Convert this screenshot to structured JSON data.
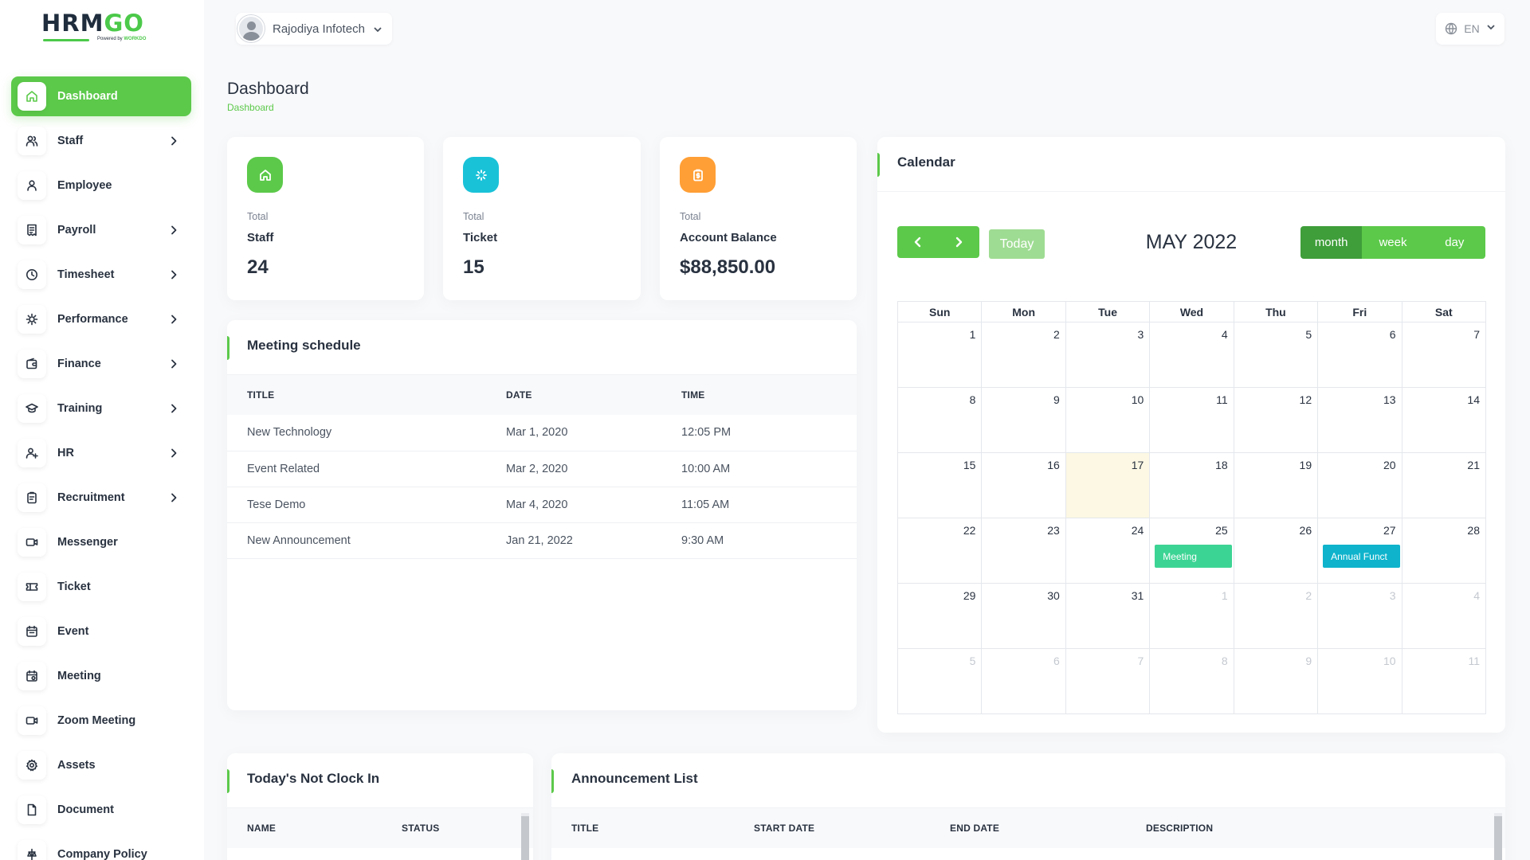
{
  "brand": {
    "logo_main": "HRM",
    "logo_accent": "GO",
    "powered_prefix": "Powered by ",
    "powered_name": "WORKDO"
  },
  "sidebar": {
    "items": [
      {
        "label": "Dashboard",
        "icon": "home-icon",
        "active": true,
        "has_children": false
      },
      {
        "label": "Staff",
        "icon": "users-icon",
        "has_children": true
      },
      {
        "label": "Employee",
        "icon": "user-icon",
        "has_children": false
      },
      {
        "label": "Payroll",
        "icon": "receipt-icon",
        "has_children": true
      },
      {
        "label": "Timesheet",
        "icon": "clock-icon",
        "has_children": true
      },
      {
        "label": "Performance",
        "icon": "target-icon",
        "has_children": true
      },
      {
        "label": "Finance",
        "icon": "wallet-icon",
        "has_children": true
      },
      {
        "label": "Training",
        "icon": "graduation-cap-icon",
        "has_children": true
      },
      {
        "label": "HR",
        "icon": "user-plus-icon",
        "has_children": true
      },
      {
        "label": "Recruitment",
        "icon": "clipboard-icon",
        "has_children": true
      },
      {
        "label": "Messenger",
        "icon": "video-chat-icon",
        "has_children": false
      },
      {
        "label": "Ticket",
        "icon": "ticket-icon",
        "has_children": false
      },
      {
        "label": "Event",
        "icon": "calendar-event-icon",
        "has_children": false
      },
      {
        "label": "Meeting",
        "icon": "calendar-meeting-icon",
        "has_children": false
      },
      {
        "label": "Zoom Meeting",
        "icon": "video-icon",
        "has_children": false
      },
      {
        "label": "Assets",
        "icon": "gear-icon",
        "has_children": false
      },
      {
        "label": "Document",
        "icon": "file-icon",
        "has_children": false
      },
      {
        "label": "Company Policy",
        "icon": "policy-icon",
        "has_children": false
      }
    ]
  },
  "header": {
    "org_name": "Rajodiya Infotech",
    "language": "EN"
  },
  "page": {
    "title": "Dashboard",
    "breadcrumb": "Dashboard"
  },
  "stats": [
    {
      "small": "Total",
      "label": "Staff",
      "value": "24",
      "color": "#5cc94a",
      "icon": "home-icon"
    },
    {
      "small": "Total",
      "label": "Ticket",
      "value": "15",
      "color": "#1ac2d8",
      "icon": "sparkle-icon"
    },
    {
      "small": "Total",
      "label": "Account Balance",
      "value": "$88,850.00",
      "color": "#ff9f36",
      "icon": "clipboard-dollar-icon"
    }
  ],
  "meeting": {
    "title": "Meeting schedule",
    "columns": [
      "TITLE",
      "DATE",
      "TIME"
    ],
    "rows": [
      {
        "title": "New Technology",
        "date": "Mar 1, 2020",
        "time": "12:05 PM"
      },
      {
        "title": "Event Related",
        "date": "Mar 2, 2020",
        "time": "10:00 AM"
      },
      {
        "title": "Tese Demo",
        "date": "Mar 4, 2020",
        "time": "11:05 AM"
      },
      {
        "title": "New Announcement",
        "date": "Jan 21, 2022",
        "time": "9:30 AM"
      }
    ]
  },
  "calendar": {
    "title": "Calendar",
    "month_label": "MAY 2022",
    "today_label": "Today",
    "views": [
      {
        "label": "month",
        "active": true
      },
      {
        "label": "week",
        "active": false
      },
      {
        "label": "day",
        "active": false
      }
    ],
    "weekdays": [
      "Sun",
      "Mon",
      "Tue",
      "Wed",
      "Thu",
      "Fri",
      "Sat"
    ],
    "weeks": [
      [
        {
          "d": "1"
        },
        {
          "d": "2"
        },
        {
          "d": "3"
        },
        {
          "d": "4"
        },
        {
          "d": "5"
        },
        {
          "d": "6"
        },
        {
          "d": "7"
        }
      ],
      [
        {
          "d": "8"
        },
        {
          "d": "9"
        },
        {
          "d": "10"
        },
        {
          "d": "11"
        },
        {
          "d": "12"
        },
        {
          "d": "13"
        },
        {
          "d": "14"
        }
      ],
      [
        {
          "d": "15"
        },
        {
          "d": "16"
        },
        {
          "d": "17",
          "today": true
        },
        {
          "d": "18"
        },
        {
          "d": "19"
        },
        {
          "d": "20"
        },
        {
          "d": "21"
        }
      ],
      [
        {
          "d": "22"
        },
        {
          "d": "23"
        },
        {
          "d": "24"
        },
        {
          "d": "25",
          "event": {
            "label": "Meeting",
            "color": "#3cd494"
          }
        },
        {
          "d": "26"
        },
        {
          "d": "27",
          "event": {
            "label": "Annual Funct",
            "color": "#0fb3cc"
          }
        },
        {
          "d": "28"
        }
      ],
      [
        {
          "d": "29"
        },
        {
          "d": "30"
        },
        {
          "d": "31"
        },
        {
          "d": "1",
          "other": true
        },
        {
          "d": "2",
          "other": true
        },
        {
          "d": "3",
          "other": true
        },
        {
          "d": "4",
          "other": true
        }
      ],
      [
        {
          "d": "5",
          "other": true
        },
        {
          "d": "6",
          "other": true
        },
        {
          "d": "7",
          "other": true
        },
        {
          "d": "8",
          "other": true
        },
        {
          "d": "9",
          "other": true
        },
        {
          "d": "10",
          "other": true
        },
        {
          "d": "11",
          "other": true
        }
      ]
    ]
  },
  "not_clock_in": {
    "title": "Today's Not Clock In",
    "columns": [
      "NAME",
      "STATUS"
    ]
  },
  "announcements": {
    "title": "Announcement List",
    "columns": [
      "TITLE",
      "START DATE",
      "END DATE",
      "DESCRIPTION"
    ]
  },
  "colors": {
    "accent": "#5cc94a",
    "accent_dark": "#3f9e3a",
    "today_bg": "#fcf8e3"
  }
}
